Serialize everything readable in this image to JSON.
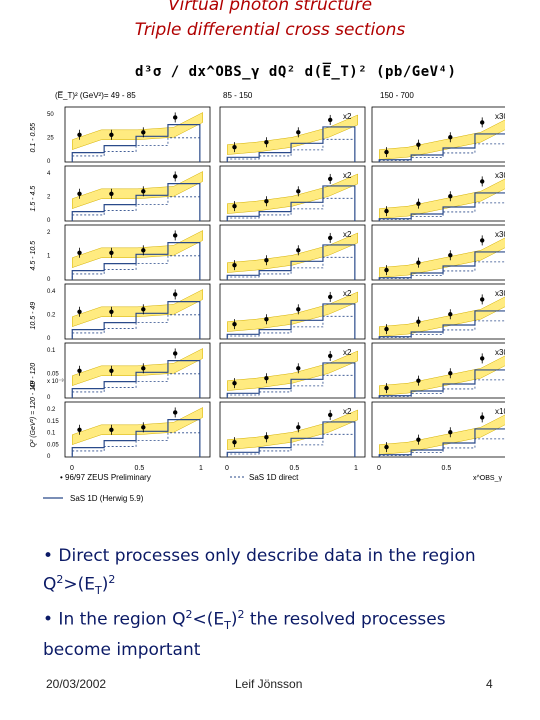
{
  "title_line1": "Virtual photon structure",
  "title_line2": "Triple differential cross sections",
  "formula": "d³σ / dx^OBS_γ dQ² d(E̅_T)² (pb/GeV⁴)",
  "figure": {
    "et_label": "(E̅_T)² (GeV²)=",
    "column_ranges": [
      "49 - 85",
      "85 - 150",
      "150 - 700"
    ],
    "row_q2_labels": [
      "0.1 - 0.55",
      "1.5 - 4.5",
      "4.5 - 10.5",
      "10.5 - 49",
      "49 - 120",
      "Q² (GeV²) = 120 - 10⁴"
    ],
    "panel_scale_labels": [
      [
        "",
        "x2",
        "x30"
      ],
      [
        "",
        "x2",
        "x30"
      ],
      [
        "",
        "x2",
        "x30"
      ],
      [
        "",
        "x2",
        "x30"
      ],
      [
        "",
        "x2",
        "x30"
      ],
      [
        "",
        "x2",
        "x10"
      ]
    ],
    "row_y_ticks": [
      [
        "50",
        "25",
        "0"
      ],
      [
        "4",
        "2",
        "0"
      ],
      [
        "2",
        "1",
        "0"
      ],
      [
        "0.4",
        "0.2",
        "0"
      ],
      [
        "0.1",
        "0.05",
        "0"
      ],
      [
        "0.2",
        "0.15",
        "0.1",
        "0.05",
        "0"
      ]
    ],
    "row5_exponent": "x 10⁻³",
    "x_ticks": [
      "0",
      "0.5",
      "1"
    ],
    "x_axis_label": "x^OBS_γ",
    "legend": {
      "data": "• 96/97 ZEUS Preliminary",
      "direct": "SaS 1D direct",
      "herwig": "SaS 1D (Herwig 5.9)"
    }
  },
  "bullets": {
    "b1_pre": "• Direct processes only describe data in the region Q",
    "b1_sup1": "2",
    "b1_mid": ">(E",
    "b1_sub": "T",
    "b1_close": ")",
    "b1_sup2": "2",
    "b2_pre": "• In the region Q",
    "b2_sup1": "2",
    "b2_mid": "<(E",
    "b2_sub": "T",
    "b2_close": ")",
    "b2_sup2": "2",
    "b2_post": " the resolved processes become important"
  },
  "footer": {
    "date": "20/03/2002",
    "author": "Leif Jönsson",
    "page": "4"
  },
  "colors": {
    "title": "#b00000",
    "bullet_text": "#0b1a66",
    "band": "#ffe24a",
    "histogram": "#2a4a8a"
  }
}
